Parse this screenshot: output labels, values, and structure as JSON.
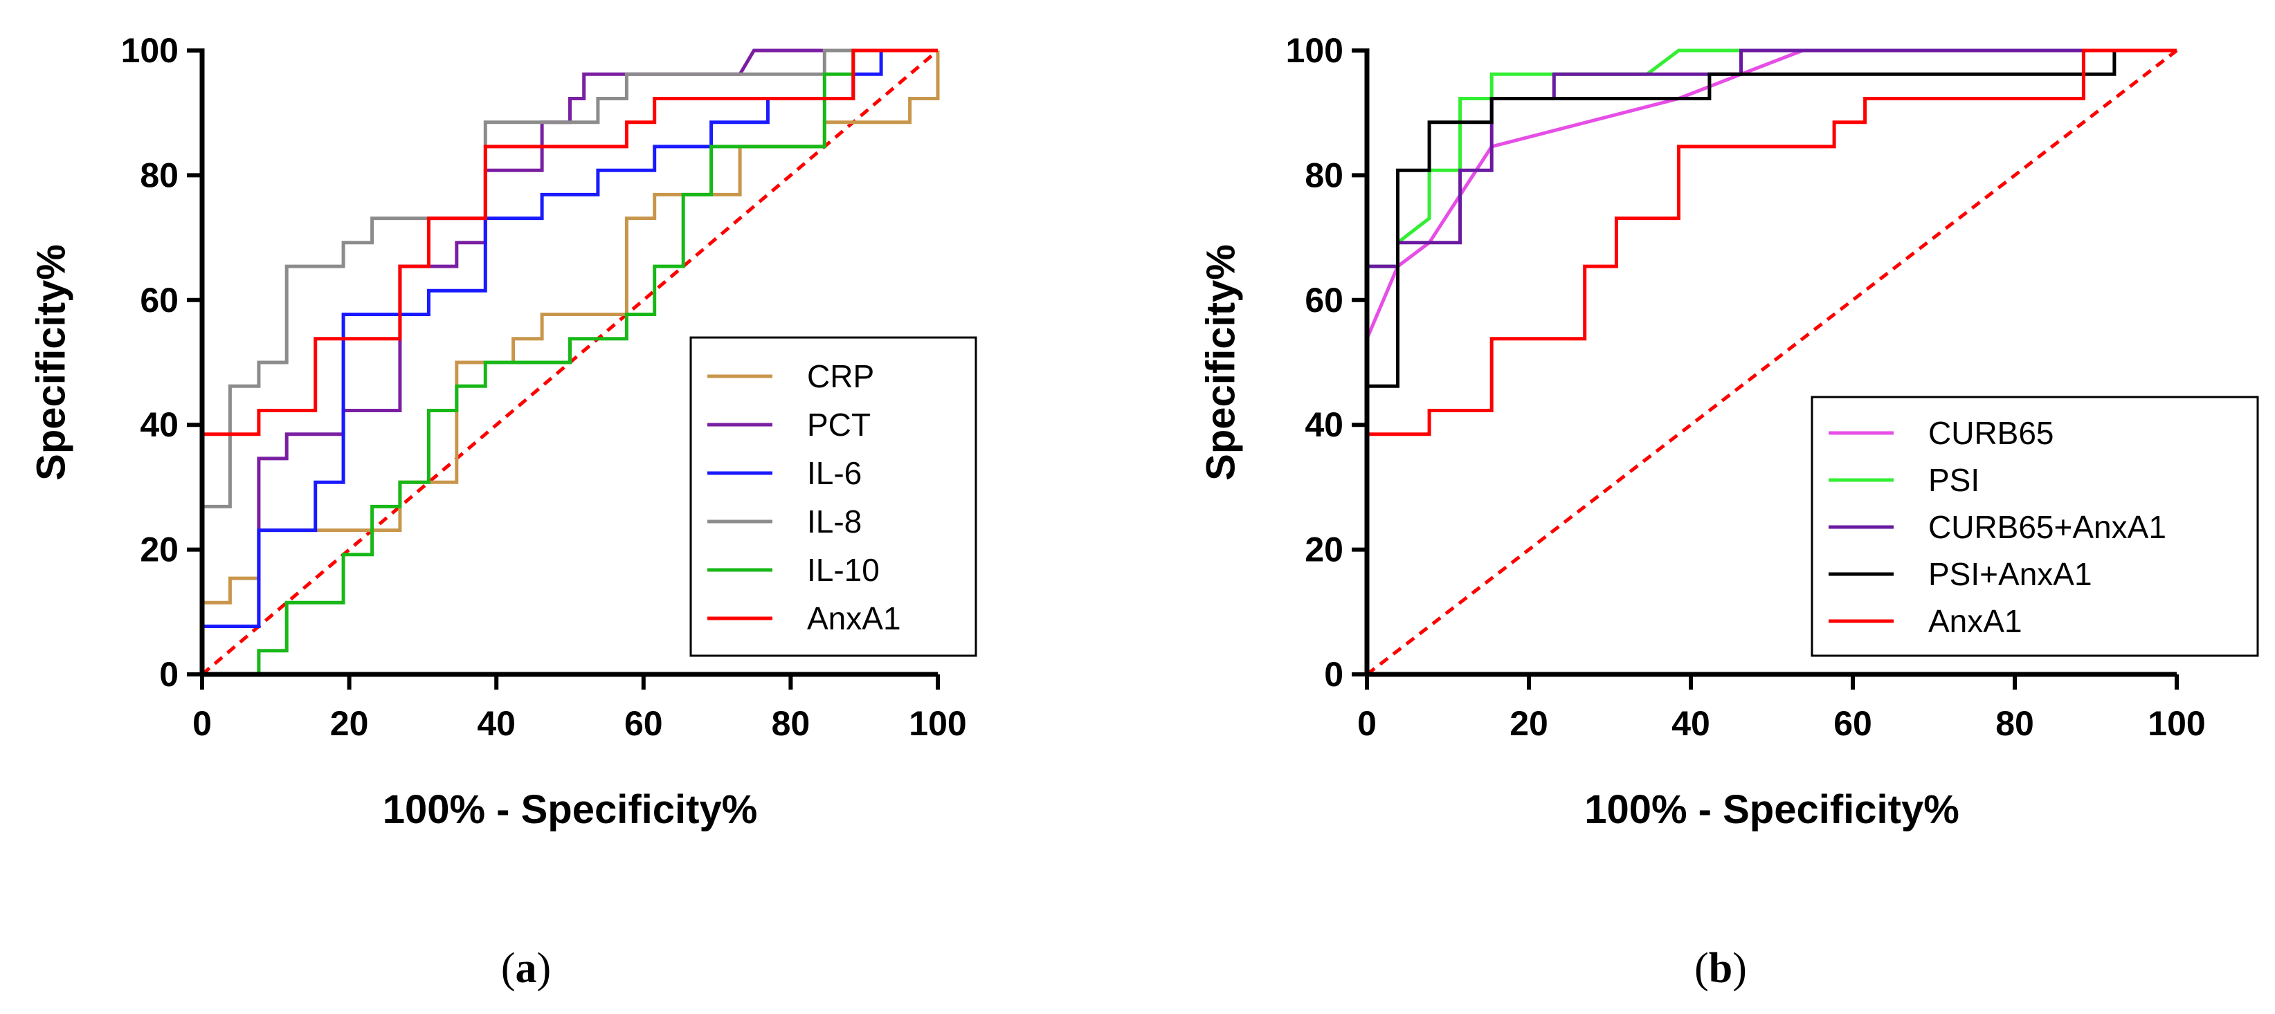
{
  "chart_data": [
    {
      "type": "line",
      "id": "a",
      "caption_letter": "a",
      "xlabel": "100% - Specificity%",
      "ylabel": "Specificity%",
      "xlim": [
        0,
        100
      ],
      "ylim": [
        0,
        100
      ],
      "xticks": [
        "0",
        "20",
        "40",
        "60",
        "80",
        "100"
      ],
      "yticks": [
        "0",
        "20",
        "40",
        "60",
        "80",
        "100"
      ],
      "legend_position": "lower-right",
      "reference_line": {
        "x": [
          0,
          100
        ],
        "y": [
          0,
          100
        ],
        "color": "#ff0000",
        "style": "dashed"
      },
      "series": [
        {
          "name": "CRP",
          "color": "#c8964b",
          "type": "step",
          "points": [
            [
              0,
              0
            ],
            [
              0,
              11.5
            ],
            [
              3.8,
              11.5
            ],
            [
              3.8,
              15.4
            ],
            [
              7.7,
              15.4
            ],
            [
              7.7,
              23.1
            ],
            [
              26.9,
              23.1
            ],
            [
              26.9,
              30.8
            ],
            [
              34.6,
              30.8
            ],
            [
              34.6,
              50
            ],
            [
              42.3,
              50
            ],
            [
              42.3,
              53.8
            ],
            [
              46.2,
              53.8
            ],
            [
              46.2,
              57.7
            ],
            [
              57.7,
              57.7
            ],
            [
              57.7,
              73.1
            ],
            [
              61.5,
              73.1
            ],
            [
              61.5,
              76.9
            ],
            [
              73.1,
              76.9
            ],
            [
              73.1,
              84.6
            ],
            [
              84.6,
              84.6
            ],
            [
              84.6,
              88.5
            ],
            [
              96.2,
              88.5
            ],
            [
              96.2,
              92.3
            ],
            [
              100,
              92.3
            ],
            [
              100,
              100
            ]
          ]
        },
        {
          "name": "PCT",
          "color": "#7a1fa2",
          "type": "step",
          "points": [
            [
              0,
              0
            ],
            [
              0,
              7.7
            ],
            [
              7.7,
              7.7
            ],
            [
              7.7,
              23.1
            ],
            [
              7.7,
              34.6
            ],
            [
              11.5,
              34.6
            ],
            [
              11.5,
              38.5
            ],
            [
              19.2,
              38.5
            ],
            [
              19.2,
              42.3
            ],
            [
              26.9,
              42.3
            ],
            [
              26.9,
              65.4
            ],
            [
              34.6,
              65.4
            ],
            [
              34.6,
              69.2
            ],
            [
              38.5,
              69.2
            ],
            [
              38.5,
              80.8
            ],
            [
              46.2,
              80.8
            ],
            [
              46.2,
              88.5
            ],
            [
              50,
              88.5
            ],
            [
              50,
              92.3
            ],
            [
              51.9,
              92.3
            ],
            [
              51.9,
              96.2
            ],
            [
              73.1,
              96.2
            ],
            [
              75,
              100
            ],
            [
              100,
              100
            ]
          ]
        },
        {
          "name": "IL-6",
          "color": "#1a1aff",
          "type": "step",
          "points": [
            [
              0,
              0
            ],
            [
              0,
              7.7
            ],
            [
              7.7,
              7.7
            ],
            [
              7.7,
              15.4
            ],
            [
              7.7,
              23.1
            ],
            [
              15.4,
              23.1
            ],
            [
              15.4,
              30.8
            ],
            [
              19.2,
              30.8
            ],
            [
              19.2,
              57.7
            ],
            [
              30.8,
              57.7
            ],
            [
              30.8,
              61.5
            ],
            [
              38.5,
              61.5
            ],
            [
              38.5,
              73.1
            ],
            [
              46.2,
              73.1
            ],
            [
              46.2,
              76.9
            ],
            [
              53.8,
              76.9
            ],
            [
              53.8,
              80.8
            ],
            [
              61.5,
              80.8
            ],
            [
              61.5,
              84.6
            ],
            [
              69.2,
              84.6
            ],
            [
              69.2,
              88.5
            ],
            [
              76.9,
              88.5
            ],
            [
              76.9,
              92.3
            ],
            [
              88.5,
              92.3
            ],
            [
              88.5,
              96.2
            ],
            [
              92.3,
              96.2
            ],
            [
              92.3,
              100
            ],
            [
              100,
              100
            ]
          ]
        },
        {
          "name": "IL-8",
          "color": "#8c8c8c",
          "type": "step",
          "points": [
            [
              0,
              0
            ],
            [
              0,
              26.9
            ],
            [
              3.8,
              26.9
            ],
            [
              3.8,
              46.2
            ],
            [
              7.7,
              46.2
            ],
            [
              7.7,
              50
            ],
            [
              11.5,
              50
            ],
            [
              11.5,
              65.4
            ],
            [
              19.2,
              65.4
            ],
            [
              19.2,
              69.2
            ],
            [
              23.1,
              69.2
            ],
            [
              23.1,
              73.1
            ],
            [
              38.5,
              73.1
            ],
            [
              38.5,
              88.5
            ],
            [
              53.8,
              88.5
            ],
            [
              53.8,
              92.3
            ],
            [
              57.7,
              92.3
            ],
            [
              57.7,
              96.2
            ],
            [
              84.6,
              96.2
            ],
            [
              84.6,
              100
            ],
            [
              100,
              100
            ]
          ]
        },
        {
          "name": "IL-10",
          "color": "#17b817",
          "type": "step",
          "points": [
            [
              0,
              0
            ],
            [
              7.7,
              0
            ],
            [
              7.7,
              3.8
            ],
            [
              11.5,
              3.8
            ],
            [
              11.5,
              11.5
            ],
            [
              19.2,
              11.5
            ],
            [
              19.2,
              19.2
            ],
            [
              23.1,
              19.2
            ],
            [
              23.1,
              26.9
            ],
            [
              26.9,
              26.9
            ],
            [
              26.9,
              30.8
            ],
            [
              30.8,
              30.8
            ],
            [
              30.8,
              34.6
            ],
            [
              30.8,
              42.3
            ],
            [
              34.6,
              42.3
            ],
            [
              34.6,
              46.2
            ],
            [
              38.5,
              46.2
            ],
            [
              38.5,
              50
            ],
            [
              50,
              50
            ],
            [
              50,
              53.8
            ],
            [
              57.7,
              53.8
            ],
            [
              57.7,
              57.7
            ],
            [
              61.5,
              57.7
            ],
            [
              61.5,
              65.4
            ],
            [
              65.4,
              65.4
            ],
            [
              65.4,
              76.9
            ],
            [
              69.2,
              76.9
            ],
            [
              69.2,
              84.6
            ],
            [
              84.6,
              84.6
            ],
            [
              84.6,
              96.2
            ],
            [
              88.5,
              96.2
            ],
            [
              88.5,
              100
            ],
            [
              100,
              100
            ]
          ]
        },
        {
          "name": "AnxA1",
          "color": "#ff0000",
          "type": "step",
          "points": [
            [
              0,
              0
            ],
            [
              0,
              38.5
            ],
            [
              7.7,
              38.5
            ],
            [
              7.7,
              42.3
            ],
            [
              15.4,
              42.3
            ],
            [
              15.4,
              53.8
            ],
            [
              26.9,
              53.8
            ],
            [
              26.9,
              65.4
            ],
            [
              30.8,
              65.4
            ],
            [
              30.8,
              73.1
            ],
            [
              38.5,
              73.1
            ],
            [
              38.5,
              84.6
            ],
            [
              57.7,
              84.6
            ],
            [
              57.7,
              88.5
            ],
            [
              61.5,
              88.5
            ],
            [
              61.5,
              92.3
            ],
            [
              88.5,
              92.3
            ],
            [
              88.5,
              100
            ],
            [
              100,
              100
            ]
          ]
        }
      ]
    },
    {
      "type": "line",
      "id": "b",
      "caption_letter": "b",
      "xlabel": "100% - Specificity%",
      "ylabel": "Specificity%",
      "xlim": [
        0,
        100
      ],
      "ylim": [
        0,
        100
      ],
      "xticks": [
        "0",
        "20",
        "40",
        "60",
        "80",
        "100"
      ],
      "yticks": [
        "0",
        "20",
        "40",
        "60",
        "80",
        "100"
      ],
      "legend_position": "lower-right",
      "reference_line": {
        "x": [
          0,
          100
        ],
        "y": [
          0,
          100
        ],
        "color": "#ff0000",
        "style": "dashed"
      },
      "series": [
        {
          "name": "CURB65",
          "color": "#e64ee6",
          "type": "line",
          "points": [
            [
              0,
              53.8
            ],
            [
              3.8,
              65.4
            ],
            [
              7.7,
              69.2
            ],
            [
              15.4,
              84.6
            ],
            [
              38.5,
              92.3
            ],
            [
              46.2,
              96.2
            ],
            [
              53.8,
              100
            ],
            [
              100,
              100
            ]
          ]
        },
        {
          "name": "PSI",
          "color": "#33ee33",
          "type": "step",
          "points": [
            [
              0,
              46.2
            ],
            [
              0,
              65.4
            ],
            [
              3.8,
              65.4
            ],
            [
              3.8,
              69.2
            ],
            [
              7.7,
              73.1
            ],
            [
              7.7,
              80.8
            ],
            [
              11.5,
              80.8
            ],
            [
              11.5,
              92.3
            ],
            [
              15.4,
              92.3
            ],
            [
              15.4,
              96.2
            ],
            [
              34.6,
              96.2
            ],
            [
              38.5,
              100
            ],
            [
              100,
              100
            ]
          ]
        },
        {
          "name": "CURB65+AnxA1",
          "color": "#6a1aa0",
          "type": "step",
          "points": [
            [
              0,
              46.2
            ],
            [
              0,
              65.4
            ],
            [
              3.8,
              65.4
            ],
            [
              3.8,
              69.2
            ],
            [
              11.5,
              69.2
            ],
            [
              11.5,
              80.8
            ],
            [
              15.4,
              80.8
            ],
            [
              15.4,
              92.3
            ],
            [
              23.1,
              92.3
            ],
            [
              23.1,
              96.2
            ],
            [
              46.2,
              96.2
            ],
            [
              46.2,
              100
            ],
            [
              100,
              100
            ]
          ]
        },
        {
          "name": "PSI+AnxA1",
          "color": "#000000",
          "type": "step",
          "points": [
            [
              0,
              46.2
            ],
            [
              3.8,
              46.2
            ],
            [
              3.8,
              80.8
            ],
            [
              7.7,
              80.8
            ],
            [
              7.7,
              88.5
            ],
            [
              15.4,
              88.5
            ],
            [
              15.4,
              92.3
            ],
            [
              42.3,
              92.3
            ],
            [
              42.3,
              96.2
            ],
            [
              92.3,
              96.2
            ],
            [
              92.3,
              100
            ],
            [
              100,
              100
            ]
          ]
        },
        {
          "name": "AnxA1",
          "color": "#ff0000",
          "type": "step",
          "points": [
            [
              0,
              38.5
            ],
            [
              7.7,
              38.5
            ],
            [
              7.7,
              42.3
            ],
            [
              15.4,
              42.3
            ],
            [
              15.4,
              53.8
            ],
            [
              26.9,
              53.8
            ],
            [
              26.9,
              65.4
            ],
            [
              30.8,
              65.4
            ],
            [
              30.8,
              73.1
            ],
            [
              38.5,
              73.1
            ],
            [
              38.5,
              84.6
            ],
            [
              57.7,
              84.6
            ],
            [
              57.7,
              88.5
            ],
            [
              61.5,
              88.5
            ],
            [
              61.5,
              92.3
            ],
            [
              88.5,
              92.3
            ],
            [
              88.5,
              100
            ],
            [
              100,
              100
            ]
          ]
        }
      ]
    }
  ]
}
